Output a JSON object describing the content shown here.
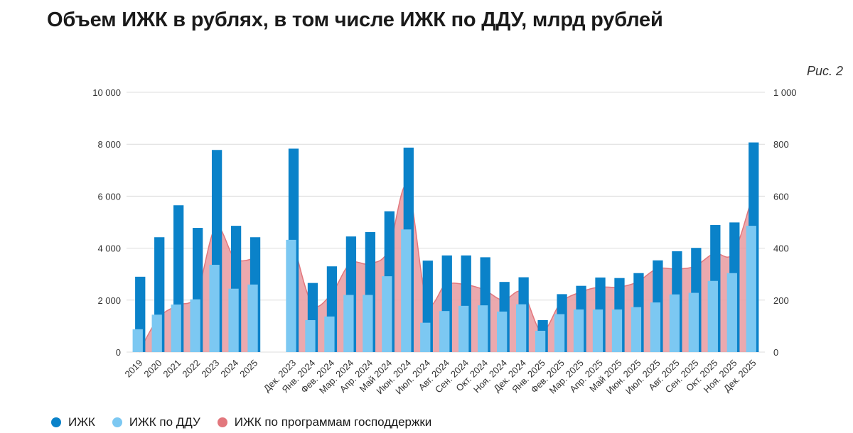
{
  "title": "Объем ИЖК в рублях, в том числе ИЖК по ДДУ, млрд рублей",
  "figure_label": "Рис. 2",
  "colors": {
    "izhk": "#0a82c9",
    "ddu": "#7cc8f2",
    "gov": "#e2777d",
    "gov_fill": "#e89aa0",
    "grid": "#dcdcdc"
  },
  "legend": [
    {
      "label": "ИЖК",
      "color": "#0a82c9"
    },
    {
      "label": "ИЖК по ДДУ",
      "color": "#7cc8f2"
    },
    {
      "label": "ИЖК по программам господдержки",
      "color": "#e2777d"
    }
  ],
  "chart_data": {
    "type": "bar",
    "categories": [
      "2019",
      "2020",
      "2021",
      "2022",
      "2023",
      "2024",
      "2025",
      "",
      "Дек. 2023",
      "Янв. 2024",
      "Фев. 2024",
      "Мар. 2024",
      "Апр. 2024",
      "Май 2024",
      "Июн. 2024",
      "Июл. 2024",
      "Авг. 2024",
      "Сен. 2024",
      "Окт. 2024",
      "Ноя. 2024",
      "Дек. 2024",
      "Янв. 2025",
      "Фев. 2025",
      "Мар. 2025",
      "Апр. 2025",
      "Май 2025",
      "Июн. 2025",
      "Июл. 2025",
      "Авг. 2025",
      "Сен. 2025",
      "Окт. 2025",
      "Ноя. 2025",
      "Дек. 2025"
    ],
    "series": [
      {
        "name": "ИЖК",
        "axis": "left",
        "values": [
          2900,
          4420,
          5650,
          4780,
          7780,
          4860,
          4420,
          null,
          7830,
          2660,
          3300,
          4450,
          4620,
          5420,
          7870,
          3520,
          3720,
          3720,
          3650,
          2700,
          2880,
          1230,
          2230,
          2550,
          2870,
          2850,
          3040,
          3530,
          3880,
          4010,
          4890,
          4990,
          8070
        ]
      },
      {
        "name": "ИЖК по ДДУ",
        "axis": "left",
        "values": [
          880,
          1440,
          1830,
          2030,
          3360,
          2440,
          2600,
          null,
          4320,
          1230,
          1370,
          2200,
          2200,
          2920,
          4720,
          1130,
          1580,
          1780,
          1800,
          1560,
          1840,
          820,
          1460,
          1640,
          1640,
          1640,
          1730,
          1910,
          2220,
          2280,
          2740,
          3040,
          4860
        ]
      },
      {
        "name": "ИЖК по программам господдержки",
        "axis": "right",
        "values": [
          0,
          130,
          180,
          220,
          480,
          360,
          360,
          null,
          440,
          190,
          220,
          340,
          340,
          390,
          640,
          200,
          260,
          260,
          240,
          200,
          230,
          80,
          190,
          230,
          250,
          250,
          270,
          320,
          320,
          330,
          380,
          380,
          600
        ]
      }
    ],
    "yleft": {
      "min": 0,
      "max": 10000,
      "ticks": [
        0,
        2000,
        4000,
        6000,
        8000,
        10000
      ],
      "tick_labels": [
        "0",
        "2 000",
        "4 000",
        "6 000",
        "8 000",
        "10 000"
      ]
    },
    "yright": {
      "min": 0,
      "max": 1000,
      "ticks": [
        0,
        200,
        400,
        600,
        800,
        1000
      ],
      "tick_labels": [
        "0",
        "200",
        "400",
        "600",
        "800",
        "1 000"
      ]
    },
    "grid": true,
    "legend_position": "bottom-left"
  }
}
